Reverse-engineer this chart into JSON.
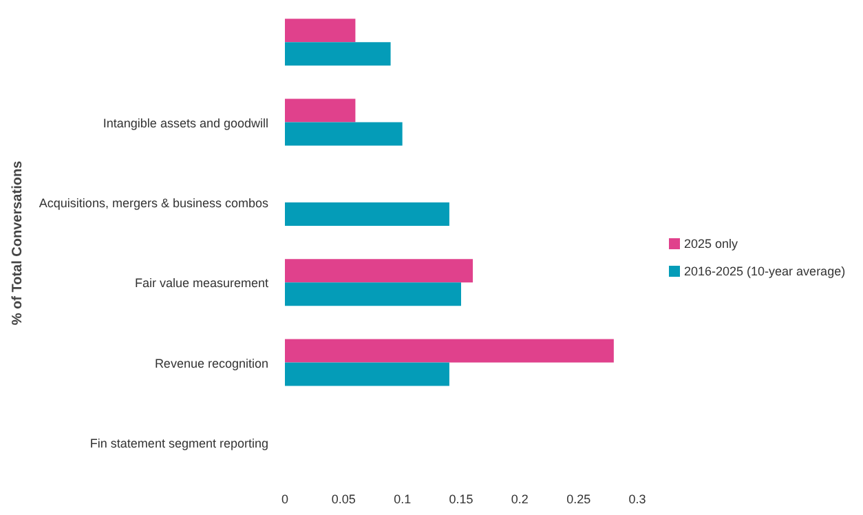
{
  "chart_data": {
    "type": "bar",
    "orientation": "horizontal",
    "ylabel": "% of Total Conversations",
    "categories": [
      null,
      "Intangible assets and goodwill",
      "Acquisitions, mergers & business combos",
      "Fair value measurement",
      "Revenue recognition",
      "Fin statement segment reporting"
    ],
    "series": [
      {
        "name": "2025 only",
        "color": "#e0418c",
        "values": [
          0.06,
          0.06,
          null,
          0.16,
          0.28,
          null
        ]
      },
      {
        "name": "2016-2025 (10-year average)",
        "color": "#049cb8",
        "values": [
          0.09,
          0.1,
          0.14,
          0.15,
          0.14,
          null
        ]
      }
    ],
    "xlim": [
      0,
      0.3
    ],
    "xticks": [
      0,
      0.05,
      0.1,
      0.15,
      0.2,
      0.25,
      0.3
    ],
    "grid": false,
    "legend": "right"
  }
}
